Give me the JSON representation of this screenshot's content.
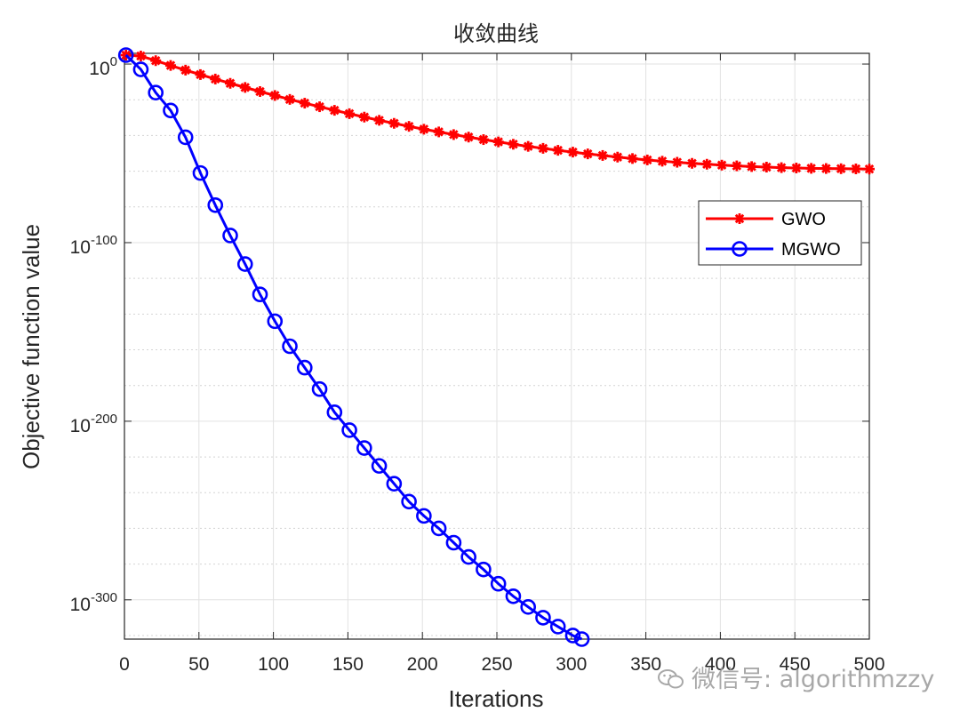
{
  "chart_data": {
    "type": "line",
    "title": "收敛曲线",
    "xlabel": "Iterations",
    "ylabel": "Objective function value",
    "xlim": [
      0,
      500
    ],
    "ylim_log10": [
      -322,
      6
    ],
    "y_scale": "log",
    "grid": true,
    "minor_grid": true,
    "legend_position": "top-right",
    "x_ticks": [
      0,
      50,
      100,
      150,
      200,
      250,
      300,
      350,
      400,
      450,
      500
    ],
    "y_ticks": [
      {
        "exp": 0,
        "base": "10",
        "sup": "0"
      },
      {
        "exp": -100,
        "base": "10",
        "sup": "-100"
      },
      {
        "exp": -200,
        "base": "10",
        "sup": "-200"
      },
      {
        "exp": -300,
        "base": "10",
        "sup": "-300"
      }
    ],
    "series": [
      {
        "name": "GWO",
        "color": "#ff0000",
        "marker": "asterisk",
        "x": [
          1,
          11,
          21,
          31,
          41,
          51,
          61,
          71,
          81,
          91,
          101,
          111,
          121,
          131,
          141,
          151,
          161,
          171,
          181,
          191,
          201,
          211,
          221,
          231,
          241,
          251,
          261,
          271,
          281,
          291,
          301,
          311,
          321,
          331,
          341,
          351,
          361,
          371,
          381,
          391,
          401,
          411,
          421,
          431,
          441,
          451,
          461,
          471,
          481,
          491,
          500
        ],
        "log10_y": [
          5.0,
          4.5,
          1.9,
          -0.8,
          -3.4,
          -5.9,
          -8.4,
          -10.8,
          -13.1,
          -15.4,
          -17.6,
          -19.8,
          -21.9,
          -23.9,
          -25.9,
          -27.8,
          -29.7,
          -31.5,
          -33.2,
          -34.9,
          -36.5,
          -38.0,
          -39.5,
          -40.9,
          -42.3,
          -43.6,
          -44.9,
          -46.1,
          -47.2,
          -48.3,
          -49.3,
          -50.3,
          -51.2,
          -52.1,
          -52.9,
          -53.7,
          -54.4,
          -55.0,
          -55.6,
          -56.1,
          -56.6,
          -57.0,
          -57.4,
          -57.7,
          -58.0,
          -58.2,
          -58.4,
          -58.5,
          -58.6,
          -58.7,
          -58.8
        ]
      },
      {
        "name": "MGWO",
        "color": "#0000ff",
        "marker": "circle",
        "x": [
          1,
          11,
          21,
          31,
          41,
          51,
          61,
          71,
          81,
          91,
          101,
          111,
          121,
          131,
          141,
          151,
          161,
          171,
          181,
          191,
          201,
          211,
          221,
          231,
          241,
          251,
          261,
          271,
          281,
          291,
          301,
          307
        ],
        "log10_y": [
          5.0,
          -3.0,
          -16.0,
          -26.0,
          -41.0,
          -61.0,
          -79.0,
          -96.0,
          -112.0,
          -129.0,
          -144.0,
          -158.0,
          -170.0,
          -182.0,
          -195.0,
          -205.0,
          -215.0,
          -225.0,
          -235.0,
          -245.0,
          -253.0,
          -260.0,
          -268.0,
          -276.0,
          -283.0,
          -291.0,
          -298.0,
          -304.0,
          -310.0,
          -315.0,
          -320.0,
          -322.0
        ]
      }
    ]
  },
  "watermark": {
    "text": "微信号: algorithmzzy"
  }
}
